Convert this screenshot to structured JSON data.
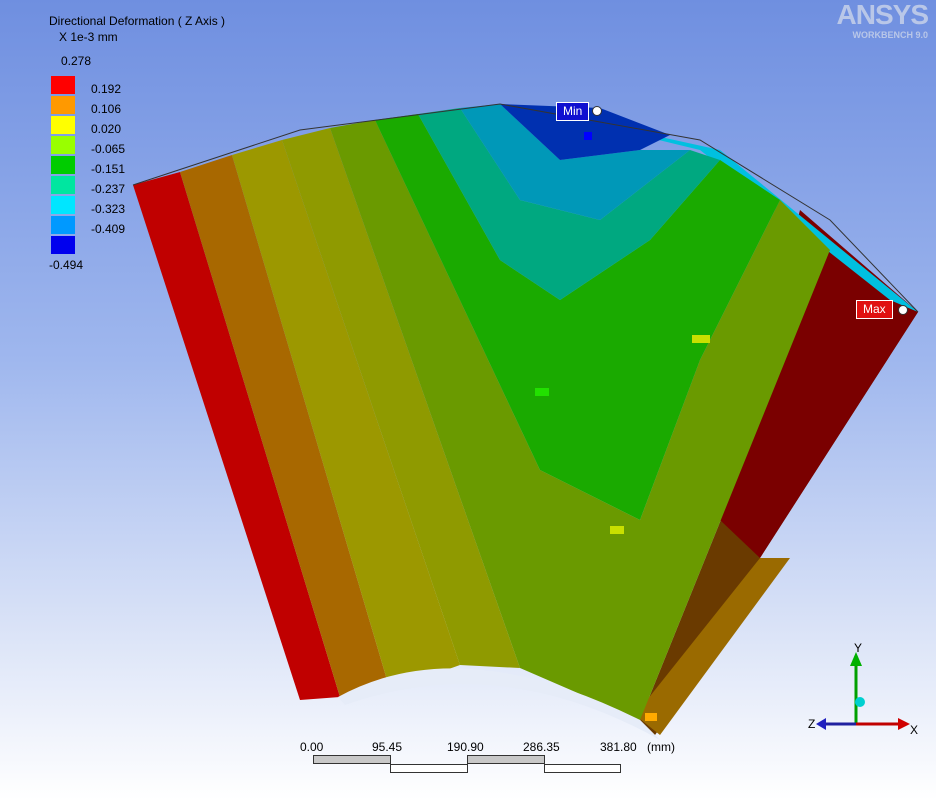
{
  "legend": {
    "title": "Directional Deformation ( Z Axis )",
    "units": "X 1e-3 mm",
    "max_value": "0.278",
    "min_value": "-0.494",
    "levels": [
      {
        "label": "0.192",
        "color": "#ff0000"
      },
      {
        "label": "0.106",
        "color": "#ff9900"
      },
      {
        "label": "0.020",
        "color": "#ffff00"
      },
      {
        "label": "-0.065",
        "color": "#99ff00"
      },
      {
        "label": "-0.151",
        "color": "#00cc00"
      },
      {
        "label": "-0.237",
        "color": "#00e6a0"
      },
      {
        "label": "-0.323",
        "color": "#00e6ff"
      },
      {
        "label": "-0.409",
        "color": "#0099ff"
      },
      {
        "label": "",
        "color": "#0000ee"
      }
    ]
  },
  "logo": {
    "brand": "ANSYS",
    "subtitle": "WORKBENCH 9.0"
  },
  "probes": {
    "min_label": "Min",
    "max_label": "Max"
  },
  "scale_bar": {
    "ticks": [
      "0.00",
      "95.45",
      "190.90",
      "286.35",
      "381.80"
    ],
    "unit": "(mm)"
  },
  "triad": {
    "x_label": "X",
    "y_label": "Y",
    "z_label": "Z"
  },
  "colors": {
    "band_red": "#cc0000",
    "band_dark_red": "#8a0000",
    "band_orange_brown": "#a86a00",
    "band_olive": "#9c9a00",
    "band_yellow_green": "#8a9a00",
    "band_green": "#5a9a00",
    "band_bright_green": "#15a800",
    "band_teal": "#00a880",
    "band_cyan": "#00a8b8",
    "band_blue": "#0058c0",
    "band_navy": "#0008a8"
  }
}
